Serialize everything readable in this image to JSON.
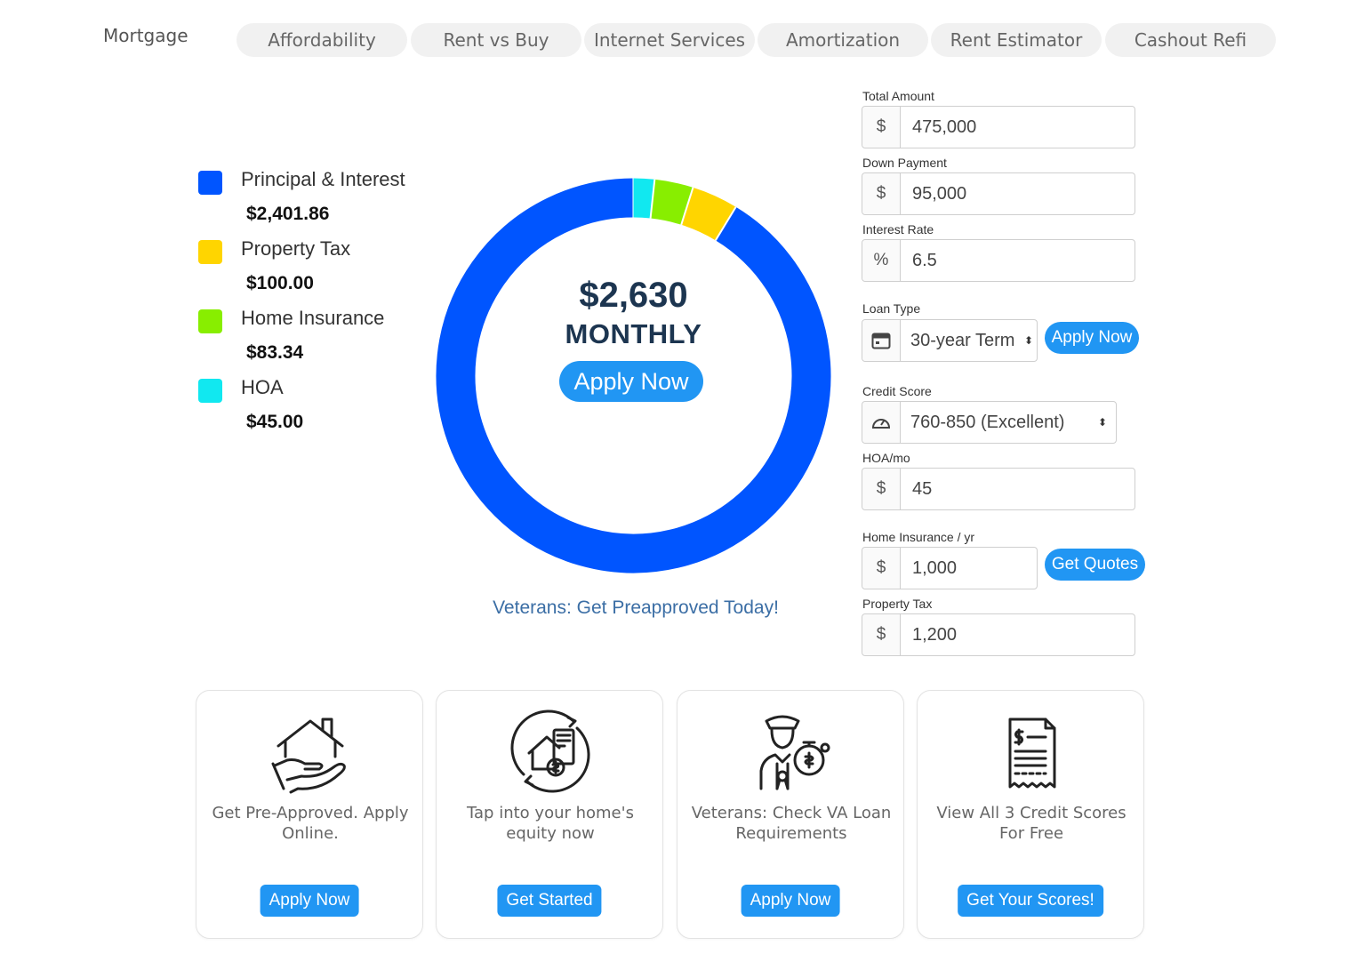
{
  "tabs": {
    "active": "Mortgage",
    "items": [
      "Affordability",
      "Rent vs Buy",
      "Internet Services",
      "Amortization",
      "Rent Estimator",
      "Cashout Refi"
    ]
  },
  "legend": [
    {
      "label": "Principal & Interest",
      "value": "$2,401.86",
      "color": "#0055ff"
    },
    {
      "label": "Property Tax",
      "value": "$100.00",
      "color": "#ffd500"
    },
    {
      "label": "Home Insurance",
      "value": "$83.34",
      "color": "#88ee00"
    },
    {
      "label": "HOA",
      "value": "$45.00",
      "color": "#11e8f0"
    }
  ],
  "chart_data": {
    "type": "pie",
    "categories": [
      "Principal & Interest",
      "Property Tax",
      "Home Insurance",
      "HOA"
    ],
    "values": [
      2401.86,
      100.0,
      83.34,
      45.0
    ],
    "colors": [
      "#0055ff",
      "#ffd500",
      "#88ee00",
      "#11e8f0"
    ]
  },
  "summary": {
    "amount": "$2,630",
    "label": "MONTHLY",
    "apply_label": "Apply Now",
    "veterans_link": "Veterans: Get Preapproved Today!"
  },
  "form": {
    "total_amount": {
      "label": "Total Amount",
      "addon": "$",
      "value": "475,000"
    },
    "down_payment": {
      "label": "Down Payment",
      "addon": "$",
      "value": "95,000"
    },
    "interest_rate": {
      "label": "Interest Rate",
      "addon": "%",
      "value": "6.5"
    },
    "loan_type": {
      "label": "Loan Type",
      "value": "30-year Term",
      "button": "Apply Now"
    },
    "credit_score": {
      "label": "Credit Score",
      "value": "760-850 (Excellent)"
    },
    "hoa": {
      "label": "HOA/mo",
      "addon": "$",
      "value": "45"
    },
    "home_insurance": {
      "label": "Home Insurance / yr",
      "addon": "$",
      "value": "1,000",
      "button": "Get Quotes"
    },
    "property_tax": {
      "label": "Property Tax",
      "addon": "$",
      "value": "1,200"
    }
  },
  "cards": [
    {
      "icon": "house-in-hand-icon",
      "text": "Get Pre-Approved. Apply Online.",
      "button": "Apply Now"
    },
    {
      "icon": "home-equity-icon",
      "text": "Tap into your home's equity now",
      "button": "Get Started"
    },
    {
      "icon": "veteran-officer-icon",
      "text": "Veterans: Check VA Loan Requirements",
      "button": "Apply Now"
    },
    {
      "icon": "credit-report-icon",
      "text": "View All 3 Credit Scores For Free",
      "button": "Get Your Scores!"
    }
  ]
}
